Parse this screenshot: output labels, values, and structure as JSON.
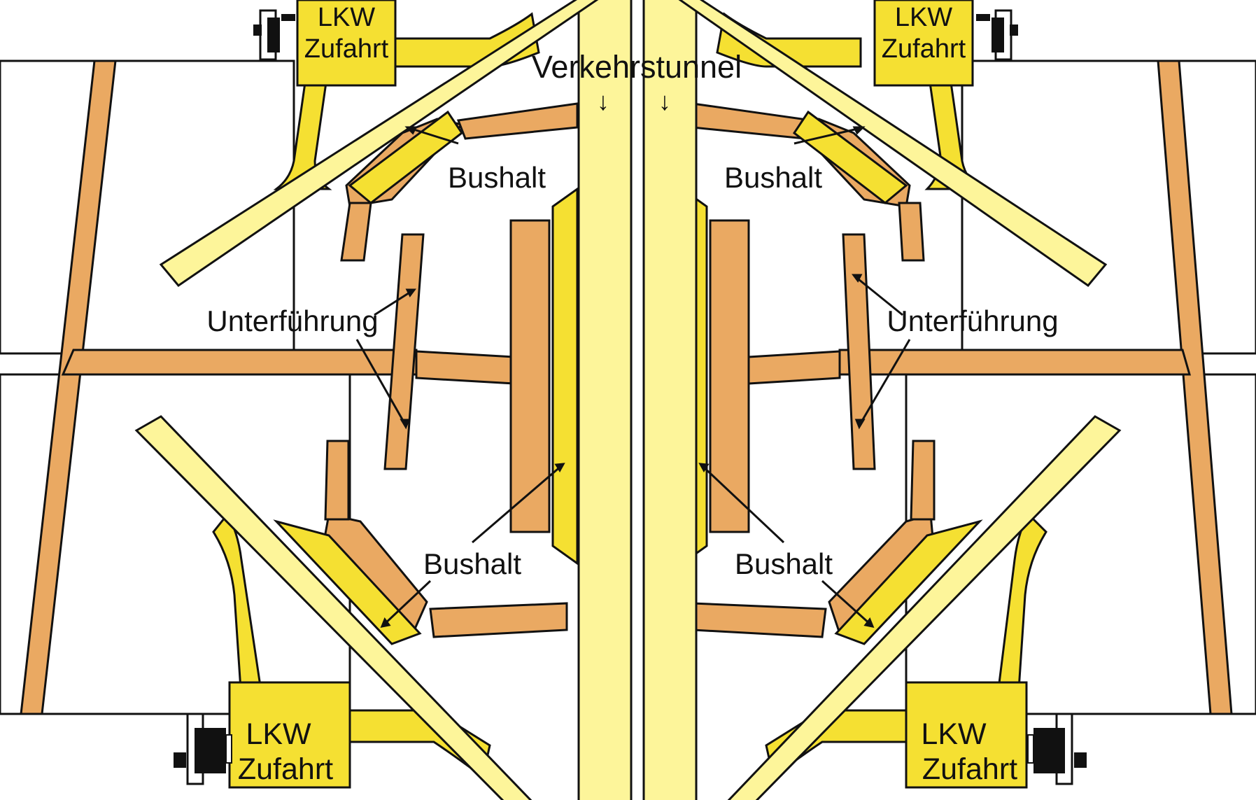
{
  "labels": {
    "tunnel": "Verkehrstunnel",
    "bus_stop": "Bushalt",
    "underpass": "Unterführung",
    "truck_line1": "LKW",
    "truck_line2": "Zufahrt",
    "arrow_down": "↓"
  },
  "colors": {
    "background": "#ffffff",
    "outline": "#111111",
    "walkway": "#eaa962",
    "truck_road": "#f5e032",
    "tunnel_road": "#fdf59a"
  },
  "icons": [
    "machinery-icon"
  ]
}
